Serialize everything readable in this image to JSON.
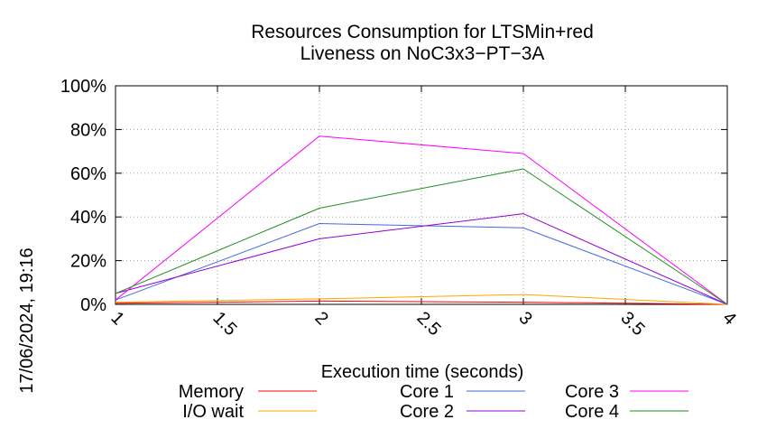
{
  "chart_data": {
    "type": "line",
    "title": "Resources Consumption for LTSMin+red",
    "subtitle": "Liveness on NoC3x3−PT−3A",
    "xlabel": "Execution time (seconds)",
    "ylabel": "",
    "xlim": [
      1,
      4
    ],
    "ylim": [
      0,
      100
    ],
    "x_ticks": [
      {
        "value": 1,
        "label": "1"
      },
      {
        "value": 1.5,
        "label": "1.5"
      },
      {
        "value": 2,
        "label": "2"
      },
      {
        "value": 2.5,
        "label": "2.5"
      },
      {
        "value": 3,
        "label": "3"
      },
      {
        "value": 3.5,
        "label": "3.5"
      },
      {
        "value": 4,
        "label": "4"
      }
    ],
    "y_ticks": [
      {
        "value": 0,
        "label": "0%"
      },
      {
        "value": 20,
        "label": "20%"
      },
      {
        "value": 40,
        "label": "40%"
      },
      {
        "value": 60,
        "label": "60%"
      },
      {
        "value": 80,
        "label": "80%"
      },
      {
        "value": 100,
        "label": "100%"
      }
    ],
    "grid": true,
    "legend_position": "bottom",
    "x": [
      1,
      2,
      3,
      4
    ],
    "series": [
      {
        "name": "Memory",
        "color": "#ff0000",
        "values": [
          0.5,
          1.5,
          1.0,
          0
        ]
      },
      {
        "name": "I/O wait",
        "color": "#ffa500",
        "values": [
          1,
          2.5,
          4.5,
          0
        ]
      },
      {
        "name": "Core 1",
        "color": "#4169e1",
        "values": [
          2,
          37,
          35,
          0
        ]
      },
      {
        "name": "Core 2",
        "color": "#9400d3",
        "values": [
          5,
          30,
          41.5,
          0
        ]
      },
      {
        "name": "Core 3",
        "color": "#ff00ff",
        "values": [
          2,
          77,
          69,
          0
        ]
      },
      {
        "name": "Core 4",
        "color": "#228b22",
        "values": [
          5,
          44,
          62,
          0
        ]
      }
    ]
  },
  "timestamp": "17/06/2024, 19:16"
}
